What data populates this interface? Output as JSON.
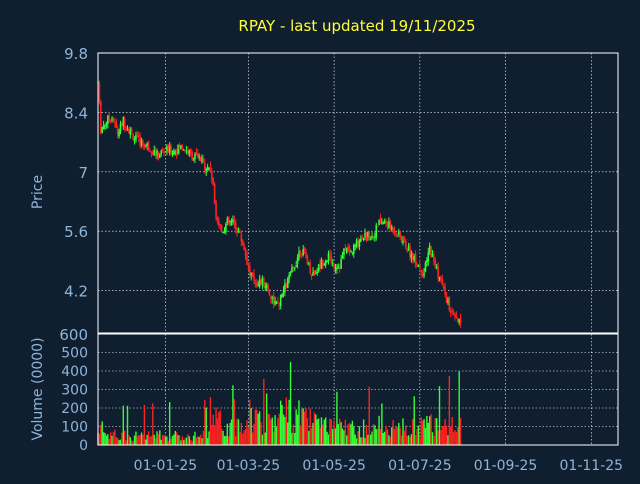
{
  "chart_data": {
    "type": "candlestick",
    "title": "RPAY - last updated 19/11/2025",
    "colors": {
      "background": "#0f1f30",
      "title": "#ffff33",
      "axis_text": "#8fb4d9",
      "grid": "#ffffff",
      "border": "#ffffff",
      "up": "#33ff33",
      "down": "#ff2020"
    },
    "price_panel": {
      "ylabel": "Price",
      "ylim": [
        3.2,
        9.8
      ],
      "yticks": [
        9.8,
        8.4,
        7,
        5.6,
        4.2
      ],
      "yticks_labels": [
        "9.8",
        "8.4",
        "7",
        "5.6",
        "4.2"
      ],
      "grid": true
    },
    "volume_panel": {
      "ylabel": "Volume (0000)",
      "ylim": [
        0,
        600
      ],
      "yticks": [
        600,
        500,
        400,
        300,
        200,
        100,
        0
      ],
      "yticks_labels": [
        "600",
        "500",
        "400",
        "300",
        "200",
        "100",
        "0"
      ],
      "grid": true
    },
    "x_ticks": [
      "01-01-25",
      "01-03-25",
      "01-05-25",
      "01-07-25",
      "01-09-25",
      "01-11-25"
    ],
    "x_tick_positions": [
      48,
      107,
      168,
      229,
      290,
      351
    ],
    "x_range": [
      0,
      370
    ],
    "anchors": [
      [
        0,
        9.1,
        80
      ],
      [
        2,
        8.0,
        100
      ],
      [
        6,
        8.2,
        70
      ],
      [
        10,
        8.3,
        60
      ],
      [
        14,
        7.9,
        60
      ],
      [
        18,
        8.2,
        60
      ],
      [
        22,
        8.0,
        60
      ],
      [
        26,
        7.8,
        55
      ],
      [
        30,
        7.7,
        50
      ],
      [
        36,
        7.6,
        55
      ],
      [
        42,
        7.4,
        60
      ],
      [
        48,
        7.5,
        55
      ],
      [
        54,
        7.5,
        55
      ],
      [
        60,
        7.6,
        50
      ],
      [
        66,
        7.4,
        60
      ],
      [
        72,
        7.3,
        60
      ],
      [
        78,
        7.1,
        60
      ],
      [
        80,
        7.1,
        70
      ],
      [
        82,
        6.6,
        150
      ],
      [
        84,
        6.0,
        160
      ],
      [
        88,
        5.6,
        120
      ],
      [
        92,
        5.8,
        110
      ],
      [
        96,
        5.8,
        100
      ],
      [
        100,
        5.6,
        120
      ],
      [
        104,
        5.2,
        130
      ],
      [
        108,
        4.6,
        200
      ],
      [
        112,
        4.4,
        160
      ],
      [
        116,
        4.4,
        140
      ],
      [
        120,
        4.3,
        150
      ],
      [
        124,
        4.0,
        170
      ],
      [
        128,
        3.8,
        180
      ],
      [
        132,
        4.2,
        200
      ],
      [
        136,
        4.5,
        190
      ],
      [
        140,
        4.8,
        180
      ],
      [
        144,
        5.2,
        170
      ],
      [
        148,
        5.0,
        150
      ],
      [
        152,
        4.6,
        140
      ],
      [
        156,
        4.7,
        120
      ],
      [
        160,
        4.9,
        110
      ],
      [
        164,
        5.0,
        100
      ],
      [
        168,
        4.8,
        100
      ],
      [
        172,
        4.8,
        100
      ],
      [
        176,
        5.2,
        110
      ],
      [
        180,
        5.1,
        100
      ],
      [
        184,
        5.3,
        100
      ],
      [
        188,
        5.5,
        100
      ],
      [
        192,
        5.5,
        100
      ],
      [
        196,
        5.5,
        100
      ],
      [
        200,
        5.8,
        110
      ],
      [
        204,
        5.8,
        100
      ],
      [
        208,
        5.7,
        100
      ],
      [
        212,
        5.6,
        100
      ],
      [
        216,
        5.4,
        100
      ],
      [
        220,
        5.2,
        100
      ],
      [
        224,
        5.0,
        110
      ],
      [
        228,
        4.8,
        100
      ],
      [
        232,
        4.6,
        110
      ],
      [
        236,
        5.2,
        130
      ],
      [
        240,
        4.8,
        120
      ],
      [
        244,
        4.4,
        140
      ],
      [
        248,
        4.0,
        140
      ],
      [
        252,
        3.6,
        150
      ],
      [
        258,
        3.4,
        160
      ]
    ]
  }
}
